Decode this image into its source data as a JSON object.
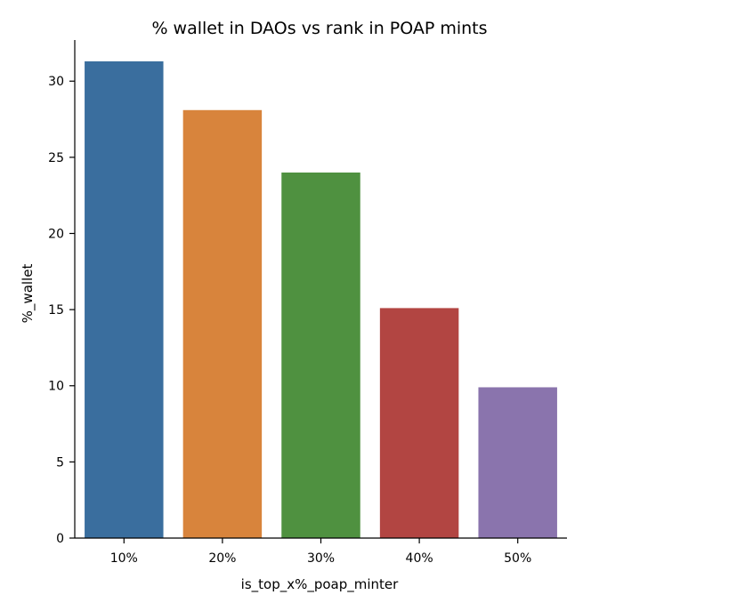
{
  "chart_data": {
    "type": "bar",
    "title": "% wallet in DAOs vs rank in POAP mints",
    "xlabel": "is_top_x%_poap_minter",
    "ylabel": "%_wallet",
    "categories": [
      "10%",
      "20%",
      "30%",
      "40%",
      "50%"
    ],
    "values": [
      31.3,
      28.1,
      24.0,
      15.1,
      9.9
    ],
    "colors": [
      "#3a6e9e",
      "#d8843c",
      "#4f9140",
      "#b24542",
      "#8a74ad"
    ],
    "ylim": [
      0,
      32.7
    ],
    "yticks": [
      0,
      5,
      10,
      15,
      20,
      25,
      30
    ],
    "grid": false,
    "legend": "none"
  }
}
